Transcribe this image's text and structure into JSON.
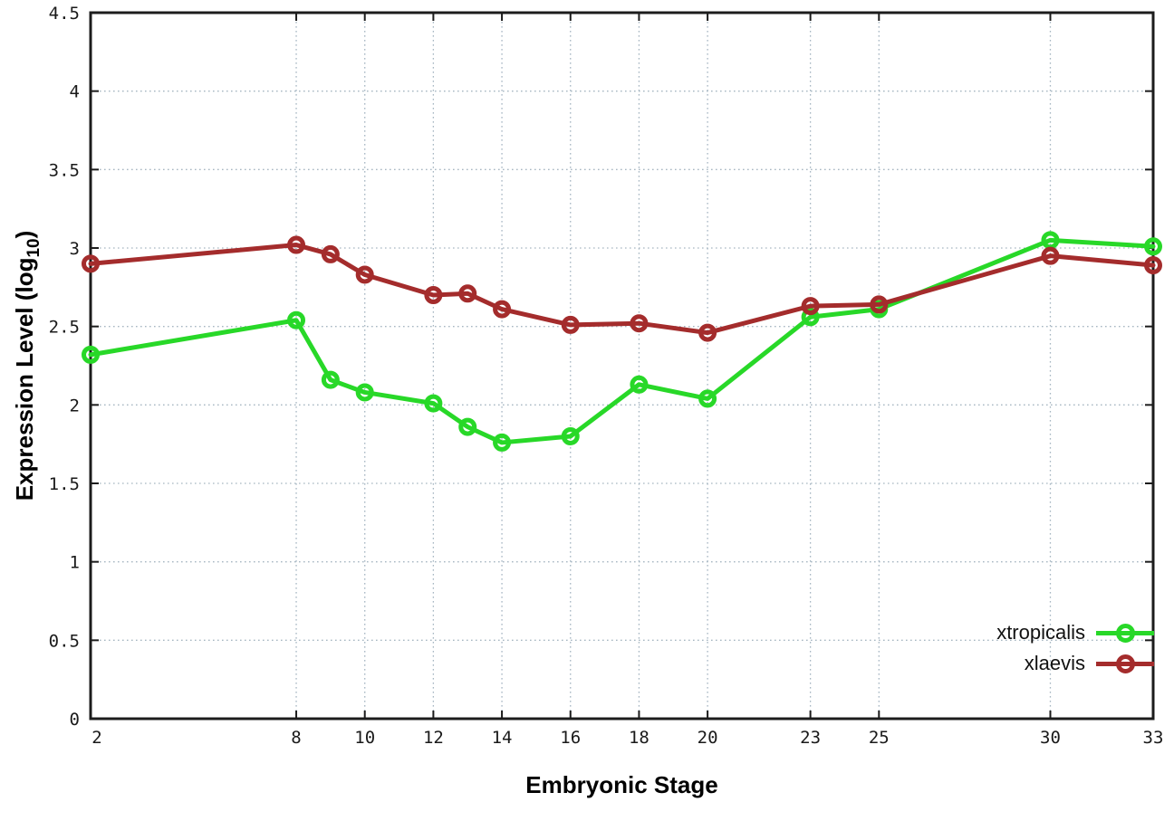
{
  "chart_data": {
    "type": "line",
    "title": "",
    "xlabel": "Embryonic Stage",
    "ylabel_pre": "Expression Level (log",
    "ylabel_sub": "10",
    "ylabel_post": ")",
    "x": [
      2,
      8,
      9,
      10,
      12,
      13,
      14,
      16,
      18,
      20,
      23,
      25,
      30,
      33
    ],
    "xticks": [
      2,
      8,
      10,
      12,
      14,
      16,
      18,
      20,
      23,
      25,
      30,
      33
    ],
    "yticks": [
      0,
      0.5,
      1,
      1.5,
      2,
      2.5,
      3,
      3.5,
      4,
      4.5
    ],
    "ytick_labels": [
      "0",
      "0.5",
      "1",
      "1.5",
      "2",
      "2.5",
      "3",
      "3.5",
      "4",
      "4.5"
    ],
    "xlim": [
      2,
      33
    ],
    "ylim": [
      0,
      4.5
    ],
    "grid": true,
    "legend_position": "bottom-right",
    "series": [
      {
        "name": "xtropicalis",
        "color": "#28d828",
        "values": [
          2.32,
          2.54,
          2.16,
          2.08,
          2.01,
          1.86,
          1.76,
          1.8,
          2.13,
          2.04,
          2.56,
          2.61,
          3.05,
          3.01
        ]
      },
      {
        "name": "xlaevis",
        "color": "#a42c2c",
        "values": [
          2.9,
          3.02,
          2.96,
          2.83,
          2.7,
          2.71,
          2.61,
          2.51,
          2.52,
          2.46,
          2.63,
          2.64,
          2.95,
          2.89
        ]
      }
    ],
    "colors": {
      "border": "#1c1c1c",
      "grid": "#a6b6c2",
      "tick_text": "#1a1a1a"
    }
  }
}
